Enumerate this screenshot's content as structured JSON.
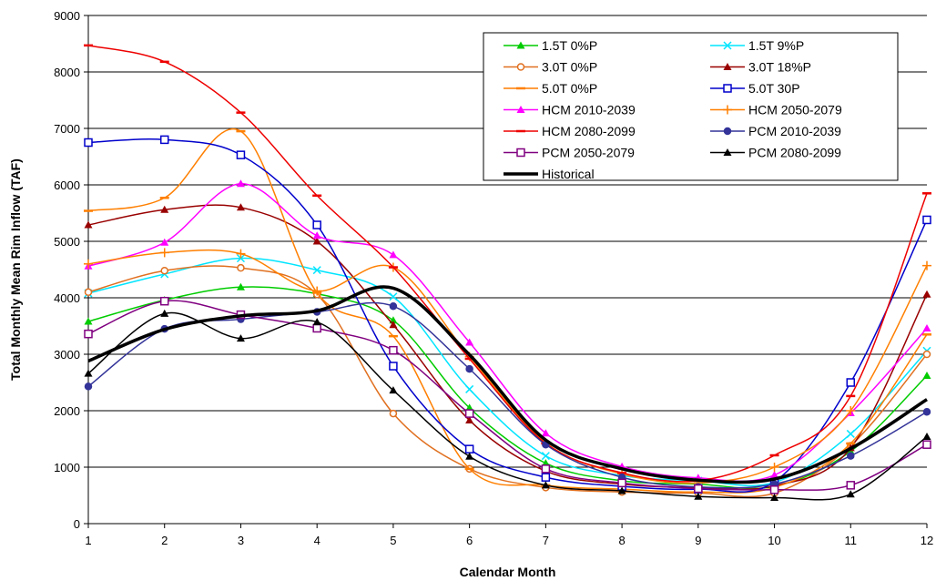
{
  "chart_data": {
    "type": "line",
    "xlabel": "Calendar Month",
    "ylabel": "Total Monthly Mean Rim Inflow (TAF)",
    "xlim": [
      1,
      12
    ],
    "ylim": [
      0,
      9000
    ],
    "x_ticks": [
      1,
      2,
      3,
      4,
      5,
      6,
      7,
      8,
      9,
      10,
      11,
      12
    ],
    "y_ticks": [
      0,
      1000,
      2000,
      3000,
      4000,
      5000,
      6000,
      7000,
      8000,
      9000
    ],
    "grid": "horizontal",
    "legend_position": "top-right",
    "x": [
      1,
      2,
      3,
      4,
      5,
      6,
      7,
      8,
      9,
      10,
      11,
      12
    ],
    "series": [
      {
        "name": "1.5T 0%P",
        "color": "#00cc00",
        "marker": "triangle",
        "values": [
          3580,
          3960,
          4190,
          4070,
          3600,
          2050,
          1070,
          760,
          700,
          660,
          1280,
          2620
        ]
      },
      {
        "name": "1.5T 9%P",
        "color": "#00e5ff",
        "marker": "x",
        "values": [
          4080,
          4420,
          4700,
          4490,
          4020,
          2380,
          1200,
          850,
          760,
          730,
          1590,
          3060
        ]
      },
      {
        "name": "3.0T 0%P",
        "color": "#e07020",
        "marker": "circle",
        "values": [
          4100,
          4480,
          4530,
          4060,
          1950,
          970,
          640,
          560,
          540,
          540,
          1380,
          3000
        ]
      },
      {
        "name": "3.0T 18%P",
        "color": "#990000",
        "marker": "triangle",
        "values": [
          5290,
          5560,
          5600,
          5000,
          3520,
          1830,
          930,
          700,
          640,
          670,
          1340,
          4060
        ]
      },
      {
        "name": "5.0T 0%P",
        "color": "#ff7f00",
        "marker": "dash",
        "values": [
          5540,
          5770,
          6950,
          4090,
          3320,
          970,
          680,
          610,
          560,
          640,
          1420,
          3350
        ]
      },
      {
        "name": "5.0T 30P",
        "color": "#0000cc",
        "marker": "square",
        "values": [
          6750,
          6800,
          6530,
          5290,
          2790,
          1320,
          820,
          660,
          610,
          740,
          2500,
          5380
        ]
      },
      {
        "name": "HCM 2010-2039",
        "color": "#ff00ff",
        "marker": "triangle",
        "values": [
          4560,
          4980,
          6020,
          5100,
          4760,
          3210,
          1600,
          1010,
          810,
          860,
          1960,
          3460
        ]
      },
      {
        "name": "HCM 2050-2079",
        "color": "#ff7f00",
        "marker": "plus",
        "values": [
          4600,
          4800,
          4780,
          4120,
          4540,
          2960,
          1430,
          880,
          720,
          1000,
          2000,
          4570
        ]
      },
      {
        "name": "HCM 2080-2099",
        "color": "#ee0000",
        "marker": "dash",
        "values": [
          8470,
          8180,
          7280,
          5810,
          4540,
          2920,
          1420,
          900,
          760,
          1210,
          2260,
          5850
        ]
      },
      {
        "name": "PCM 2010-2039",
        "color": "#333399",
        "marker": "circle",
        "values": [
          2430,
          3450,
          3620,
          3750,
          3850,
          2740,
          1400,
          820,
          650,
          700,
          1200,
          1980
        ]
      },
      {
        "name": "PCM 2050-2079",
        "color": "#800080",
        "marker": "square",
        "values": [
          3360,
          3940,
          3700,
          3460,
          3070,
          1950,
          970,
          720,
          620,
          600,
          680,
          1400
        ]
      },
      {
        "name": "PCM 2080-2099",
        "color": "#000000",
        "marker": "triangle",
        "values": [
          2660,
          3720,
          3280,
          3570,
          2360,
          1190,
          680,
          580,
          480,
          460,
          520,
          1540
        ]
      },
      {
        "name": "Historical",
        "color": "#000000",
        "marker": "none",
        "width": "thick",
        "values": [
          2880,
          3440,
          3680,
          3770,
          4170,
          2990,
          1480,
          970,
          770,
          790,
          1330,
          2200
        ]
      }
    ]
  }
}
